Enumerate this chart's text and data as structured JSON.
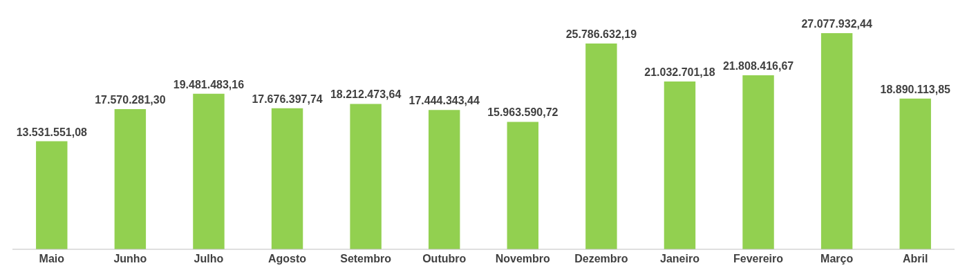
{
  "chart_data": {
    "type": "bar",
    "categories": [
      "Maio",
      "Junho",
      "Julho",
      "Agosto",
      "Setembro",
      "Outubro",
      "Novembro",
      "Dezembro",
      "Janeiro",
      "Fevereiro",
      "Março",
      "Abril"
    ],
    "values": [
      13531551.08,
      17570281.3,
      19481483.16,
      17676397.74,
      18212473.64,
      17444343.44,
      15963590.72,
      25786632.19,
      21032701.18,
      21808416.67,
      27077932.44,
      18890113.85
    ],
    "value_labels": [
      "13.531.551,08",
      "17.570.281,30",
      "19.481.483,16",
      "17.676.397,74",
      "18.212.473,64",
      "17.444.343,44",
      "15.963.590,72",
      "25.786.632,19",
      "21.032.701,18",
      "21.808.416,67",
      "27.077.932,44",
      "18.890.113,85"
    ],
    "color": "#92d050",
    "tick_labels": "x"
  }
}
